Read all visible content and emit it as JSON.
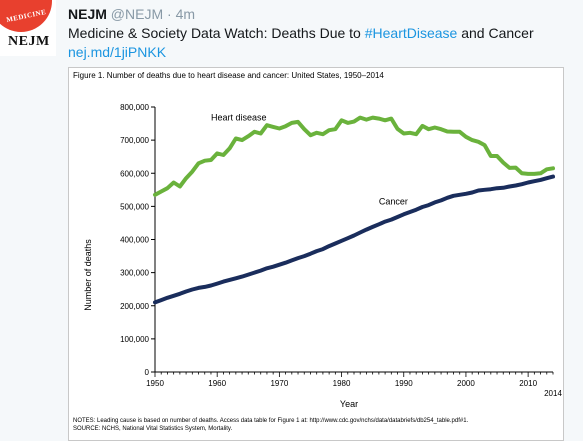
{
  "tweet": {
    "avatar_seal": "MEDICINE",
    "avatar_label": "NEJM",
    "display_name": "NEJM",
    "handle": "@NEJM",
    "separator": "·",
    "time": "4m",
    "text_before": "Medicine & Society Data Watch: Deaths Due to ",
    "hashtag": "#HeartDisease",
    "text_after": " and Cancer",
    "link": "nej.md/1jiPNKK"
  },
  "figure": {
    "title": "Figure 1. Number of deaths due to heart disease and cancer: United States, 1950–2014",
    "notes_line1": "NOTES: Leading cause is based on number of deaths. Access data table for Figure 1 at: http://www.cdc.gov/nchs/data/databriefs/db254_table.pdf#1.",
    "notes_line2": "SOURCE: NCHS, National Vital Statistics System, Mortality."
  },
  "chart_data": {
    "type": "line",
    "title": "Figure 1. Number of deaths due to heart disease and cancer: United States, 1950–2014",
    "xlabel": "Year",
    "ylabel": "Number of deaths",
    "xlim": [
      1950,
      2014
    ],
    "ylim": [
      0,
      800000
    ],
    "x_ticks": [
      1950,
      1960,
      1970,
      1980,
      1990,
      2000,
      2010
    ],
    "x_tick_extra": "2014",
    "y_ticks": [
      "0",
      "100,000",
      "200,000",
      "300,000",
      "400,000",
      "500,000",
      "600,000",
      "700,000",
      "800,000"
    ],
    "y_tick_values": [
      0,
      100000,
      200000,
      300000,
      400000,
      500000,
      600000,
      700000,
      800000
    ],
    "grid": false,
    "x": [
      1950,
      1951,
      1952,
      1953,
      1954,
      1955,
      1956,
      1957,
      1958,
      1959,
      1960,
      1961,
      1962,
      1963,
      1964,
      1965,
      1966,
      1967,
      1968,
      1969,
      1970,
      1971,
      1972,
      1973,
      1974,
      1975,
      1976,
      1977,
      1978,
      1979,
      1980,
      1981,
      1982,
      1983,
      1984,
      1985,
      1986,
      1987,
      1988,
      1989,
      1990,
      1991,
      1992,
      1993,
      1994,
      1995,
      1996,
      1997,
      1998,
      1999,
      2000,
      2001,
      2002,
      2003,
      2004,
      2005,
      2006,
      2007,
      2008,
      2009,
      2010,
      2011,
      2012,
      2013,
      2014
    ],
    "series": [
      {
        "name": "Heart disease",
        "color": "#6ab23c",
        "values": [
          535000,
          545000,
          555000,
          572000,
          560000,
          585000,
          605000,
          630000,
          638000,
          640000,
          660000,
          655000,
          675000,
          705000,
          700000,
          712000,
          725000,
          720000,
          745000,
          740000,
          735000,
          742000,
          752000,
          755000,
          733000,
          715000,
          722000,
          718000,
          730000,
          733000,
          760000,
          752000,
          756000,
          768000,
          762000,
          768000,
          765000,
          760000,
          765000,
          734000,
          720000,
          722000,
          718000,
          743000,
          733000,
          738000,
          733000,
          726000,
          725000,
          725000,
          710000,
          700000,
          695000,
          685000,
          652000,
          652000,
          632000,
          616000,
          617000,
          600000,
          598000,
          598000,
          600000,
          612000,
          615000
        ]
      },
      {
        "name": "Cancer",
        "color": "#1a2d5c",
        "values": [
          210000,
          217000,
          224000,
          230000,
          236000,
          243000,
          249000,
          254000,
          257000,
          261000,
          267000,
          273000,
          278000,
          283000,
          288000,
          294000,
          300000,
          306000,
          313000,
          318000,
          324000,
          330000,
          337000,
          344000,
          350000,
          357000,
          365000,
          371000,
          380000,
          388000,
          396000,
          404000,
          412000,
          421000,
          430000,
          438000,
          446000,
          454000,
          460000,
          468000,
          476000,
          483000,
          490000,
          498000,
          504000,
          512000,
          518000,
          526000,
          532000,
          535000,
          538000,
          542000,
          548000,
          550000,
          552000,
          555000,
          556000,
          560000,
          563000,
          567000,
          572000,
          576000,
          580000,
          585000,
          590000
        ]
      }
    ]
  }
}
